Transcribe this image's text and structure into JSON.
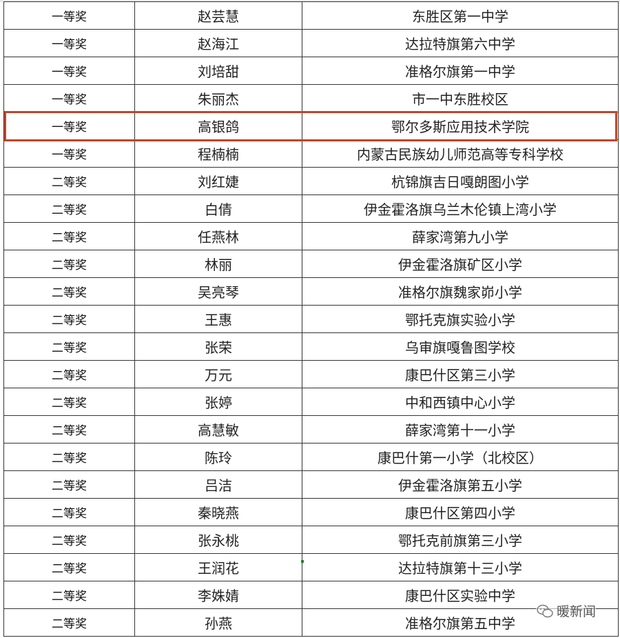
{
  "rows": [
    {
      "award": "一等奖",
      "name": "赵芸慧",
      "school": "东胜区第一中学"
    },
    {
      "award": "一等奖",
      "name": "赵海江",
      "school": "达拉特旗第六中学"
    },
    {
      "award": "一等奖",
      "name": "刘培甜",
      "school": "准格尔旗第一中学"
    },
    {
      "award": "一等奖",
      "name": "朱丽杰",
      "school": "市一中东胜校区"
    },
    {
      "award": "一等奖",
      "name": "高银鸽",
      "school": "鄂尔多斯应用技术学院"
    },
    {
      "award": "一等奖",
      "name": "程楠楠",
      "school": "内蒙古民族幼儿师范高等专科学校"
    },
    {
      "award": "二等奖",
      "name": "刘红婕",
      "school": "杭锦旗吉日嘎朗图小学"
    },
    {
      "award": "二等奖",
      "name": "白倩",
      "school": "伊金霍洛旗乌兰木伦镇上湾小学"
    },
    {
      "award": "二等奖",
      "name": "任燕林",
      "school": "薛家湾第九小学"
    },
    {
      "award": "二等奖",
      "name": "林丽",
      "school": "伊金霍洛旗矿区小学"
    },
    {
      "award": "二等奖",
      "name": "吴亮琴",
      "school": "准格尔旗魏家峁小学"
    },
    {
      "award": "二等奖",
      "name": "王惠",
      "school": "鄂托克旗实验小学"
    },
    {
      "award": "二等奖",
      "name": "张荣",
      "school": "乌审旗嘎鲁图学校"
    },
    {
      "award": "二等奖",
      "name": "万元",
      "school": "康巴什区第三小学"
    },
    {
      "award": "二等奖",
      "name": "张婷",
      "school": "中和西镇中心小学"
    },
    {
      "award": "二等奖",
      "name": "高慧敏",
      "school": "薛家湾第十一小学"
    },
    {
      "award": "二等奖",
      "name": "陈玲",
      "school": "康巴什第一小学（北校区）"
    },
    {
      "award": "二等奖",
      "name": "吕洁",
      "school": "伊金霍洛旗第五小学"
    },
    {
      "award": "二等奖",
      "name": "秦晓燕",
      "school": "康巴什区第四小学"
    },
    {
      "award": "二等奖",
      "name": "张永桃",
      "school": "鄂托克前旗第三小学"
    },
    {
      "award": "二等奖",
      "name": "王润花",
      "school": "达拉特旗第十三小学"
    },
    {
      "award": "二等奖",
      "name": "李姝婧",
      "school": "康巴什区实验中学"
    },
    {
      "award": "二等奖",
      "name": "孙燕",
      "school": "准格尔旗第五中学"
    }
  ],
  "highlighted_row": 4,
  "highlight_color": "#c0442a",
  "watermark": {
    "text": "暖新闻",
    "icon": "wechat-icon"
  }
}
